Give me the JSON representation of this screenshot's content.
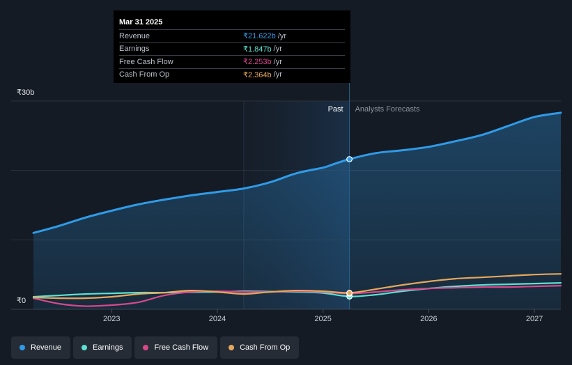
{
  "chart_data": {
    "type": "area",
    "title": "",
    "x_domain": [
      2022.26,
      2027.25
    ],
    "ylim": [
      0,
      30
    ],
    "y_ticks": [
      {
        "value": 30,
        "label": "₹30b"
      },
      {
        "value": 0,
        "label": "₹0"
      }
    ],
    "x_ticks": [
      {
        "value": 2023,
        "label": "2023"
      },
      {
        "value": 2024,
        "label": "2024"
      },
      {
        "value": 2025,
        "label": "2025"
      },
      {
        "value": 2026,
        "label": "2026"
      },
      {
        "value": 2027,
        "label": "2027"
      }
    ],
    "past_label": "Past",
    "forecast_label": "Analysts Forecasts",
    "divider_x": 2025.25,
    "shade_start_x": 2024.25,
    "series": [
      {
        "name": "Revenue",
        "color": "#2f9be8",
        "area": true,
        "points": [
          [
            2022.26,
            11.0
          ],
          [
            2022.5,
            12.0
          ],
          [
            2022.75,
            13.2
          ],
          [
            2023.0,
            14.2
          ],
          [
            2023.25,
            15.1
          ],
          [
            2023.5,
            15.8
          ],
          [
            2023.75,
            16.4
          ],
          [
            2024.0,
            16.9
          ],
          [
            2024.25,
            17.4
          ],
          [
            2024.5,
            18.3
          ],
          [
            2024.75,
            19.6
          ],
          [
            2025.0,
            20.4
          ],
          [
            2025.1,
            20.9
          ],
          [
            2025.25,
            21.622
          ],
          [
            2025.5,
            22.5
          ],
          [
            2025.75,
            22.9
          ],
          [
            2026.0,
            23.4
          ],
          [
            2026.25,
            24.2
          ],
          [
            2026.5,
            25.1
          ],
          [
            2026.75,
            26.4
          ],
          [
            2027.0,
            27.7
          ],
          [
            2027.25,
            28.3
          ]
        ]
      },
      {
        "name": "Earnings",
        "color": "#5ce1d2",
        "area": false,
        "points": [
          [
            2022.26,
            1.8
          ],
          [
            2022.5,
            2.0
          ],
          [
            2022.75,
            2.2
          ],
          [
            2023.0,
            2.3
          ],
          [
            2023.25,
            2.4
          ],
          [
            2023.5,
            2.4
          ],
          [
            2023.75,
            2.45
          ],
          [
            2024.0,
            2.5
          ],
          [
            2024.25,
            2.6
          ],
          [
            2024.5,
            2.55
          ],
          [
            2024.75,
            2.5
          ],
          [
            2025.0,
            2.35
          ],
          [
            2025.25,
            1.847
          ],
          [
            2025.5,
            2.1
          ],
          [
            2025.75,
            2.6
          ],
          [
            2026.0,
            3.0
          ],
          [
            2026.25,
            3.3
          ],
          [
            2026.5,
            3.5
          ],
          [
            2026.75,
            3.6
          ],
          [
            2027.0,
            3.7
          ],
          [
            2027.25,
            3.8
          ]
        ]
      },
      {
        "name": "Free Cash Flow",
        "color": "#d6488a",
        "area": false,
        "points": [
          [
            2022.26,
            1.6
          ],
          [
            2022.5,
            0.8
          ],
          [
            2022.75,
            0.45
          ],
          [
            2023.0,
            0.6
          ],
          [
            2023.25,
            1.0
          ],
          [
            2023.5,
            2.0
          ],
          [
            2023.75,
            2.5
          ],
          [
            2024.0,
            2.6
          ],
          [
            2024.25,
            2.5
          ],
          [
            2024.5,
            2.5
          ],
          [
            2024.75,
            2.6
          ],
          [
            2025.0,
            2.5
          ],
          [
            2025.25,
            2.253
          ],
          [
            2025.5,
            2.5
          ],
          [
            2025.75,
            2.8
          ],
          [
            2026.0,
            3.0
          ],
          [
            2026.25,
            3.1
          ],
          [
            2026.5,
            3.2
          ],
          [
            2026.75,
            3.2
          ],
          [
            2027.0,
            3.3
          ],
          [
            2027.25,
            3.4
          ]
        ]
      },
      {
        "name": "Cash From Op",
        "color": "#e6a85c",
        "area": false,
        "points": [
          [
            2022.26,
            1.7
          ],
          [
            2022.5,
            1.6
          ],
          [
            2022.75,
            1.6
          ],
          [
            2023.0,
            1.8
          ],
          [
            2023.25,
            2.2
          ],
          [
            2023.5,
            2.4
          ],
          [
            2023.75,
            2.7
          ],
          [
            2024.0,
            2.5
          ],
          [
            2024.25,
            2.2
          ],
          [
            2024.5,
            2.5
          ],
          [
            2024.75,
            2.7
          ],
          [
            2025.0,
            2.6
          ],
          [
            2025.25,
            2.364
          ],
          [
            2025.5,
            2.9
          ],
          [
            2025.75,
            3.5
          ],
          [
            2026.0,
            4.0
          ],
          [
            2026.25,
            4.4
          ],
          [
            2026.5,
            4.6
          ],
          [
            2026.75,
            4.8
          ],
          [
            2027.0,
            5.0
          ],
          [
            2027.25,
            5.1
          ]
        ]
      }
    ]
  },
  "tooltip": {
    "date": "Mar 31 2025",
    "rows": [
      {
        "label": "Revenue",
        "value": "₹21.622b",
        "unit": "/yr",
        "color": "#2f9be8"
      },
      {
        "label": "Earnings",
        "value": "₹1.847b",
        "unit": "/yr",
        "color": "#5ce1d2"
      },
      {
        "label": "Free Cash Flow",
        "value": "₹2.253b",
        "unit": "/yr",
        "color": "#d6488a"
      },
      {
        "label": "Cash From Op",
        "value": "₹2.364b",
        "unit": "/yr",
        "color": "#e6a85c"
      }
    ]
  },
  "legend": [
    {
      "label": "Revenue",
      "color": "#2f9be8"
    },
    {
      "label": "Earnings",
      "color": "#5ce1d2"
    },
    {
      "label": "Free Cash Flow",
      "color": "#d6488a"
    },
    {
      "label": "Cash From Op",
      "color": "#e6a85c"
    }
  ]
}
